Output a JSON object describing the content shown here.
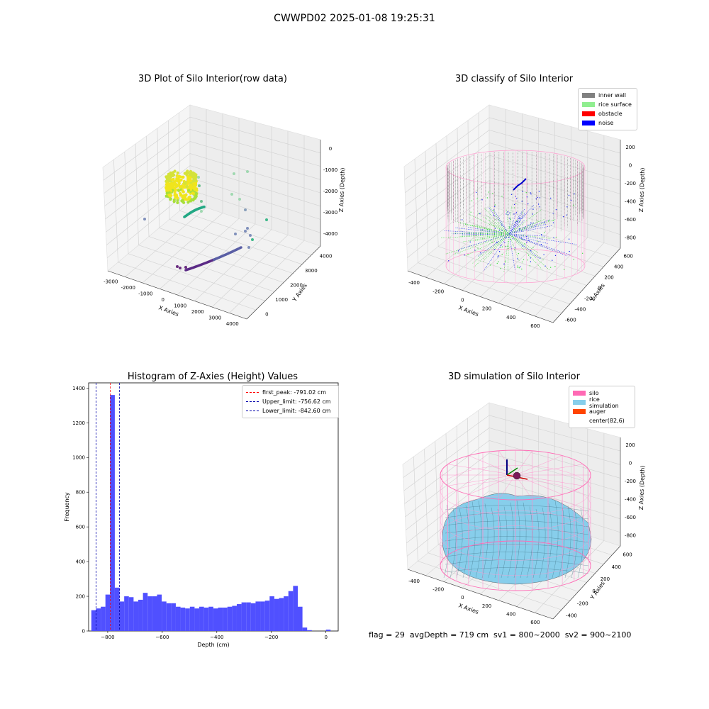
{
  "suptitle": "CWWPD02 2025-01-08 19:25:31",
  "panels": {
    "raw": {
      "title": "3D Plot of Silo Interior(row data)",
      "xlabel": "X Axies",
      "ylabel": "Y Axies",
      "zlabel": "Z Axies (Depth)",
      "xticks": [
        "-3000",
        "-2000",
        "-1000",
        "0",
        "1000",
        "2000",
        "3000",
        "4000"
      ],
      "yticks": [
        "0",
        "1000",
        "2000",
        "3000",
        "4000"
      ],
      "zticks": [
        "0",
        "-1000",
        "-2000",
        "-3000",
        "-4000"
      ]
    },
    "classify": {
      "title": "3D classify of Silo Interior",
      "xlabel": "X Axies",
      "ylabel": "Y Axies",
      "zlabel": "Z Axies (Depth)",
      "xticks": [
        "-400",
        "-200",
        "0",
        "200",
        "400",
        "600"
      ],
      "yticks": [
        "-600",
        "-400",
        "-200",
        "0",
        "200",
        "400",
        "600"
      ],
      "zticks": [
        "200",
        "0",
        "-200",
        "-400",
        "-600",
        "-800"
      ],
      "legend": [
        {
          "label": "inner wall",
          "color": "#808080"
        },
        {
          "label": "rice surface",
          "color": "#90ee90"
        },
        {
          "label": "obstacle",
          "color": "#ff0000"
        },
        {
          "label": "noise",
          "color": "#0000ff"
        }
      ]
    },
    "simulation": {
      "title": "3D simulation of Silo Interior",
      "xlabel": "X Axies",
      "ylabel": "Y Axies",
      "zlabel": "Z Axies (Depth)",
      "xticks": [
        "-400",
        "-200",
        "0",
        "200",
        "400",
        "600"
      ],
      "yticks": [
        "-400",
        "-200",
        "0",
        "200",
        "400",
        "600"
      ],
      "zticks": [
        "200",
        "0",
        "-200",
        "-400",
        "-600",
        "-800"
      ],
      "legend": [
        {
          "label": "silo",
          "color": "#ff69b4"
        },
        {
          "label": "rice simulation",
          "color": "#87ceeb"
        },
        {
          "label": "auger",
          "color": "#ff4500"
        },
        {
          "label": "center(82,6)",
          "color": "#ffffff"
        }
      ]
    }
  },
  "chart_data": {
    "type": "bar",
    "title": "Histogram of Z-Axies (Height) Values",
    "xlabel": "Depth (cm)",
    "ylabel": "Frequency",
    "bar_color": "#5050ff",
    "xlim": [
      -870,
      45
    ],
    "ylim": [
      0,
      1430
    ],
    "xticks": [
      -800,
      -600,
      -400,
      -200,
      0
    ],
    "yticks": [
      0,
      200,
      400,
      600,
      800,
      1000,
      1200,
      1400
    ],
    "bin_width": 17.2,
    "bin_start": -860,
    "values": [
      120,
      130,
      140,
      210,
      1360,
      250,
      170,
      200,
      195,
      170,
      180,
      220,
      200,
      200,
      210,
      170,
      160,
      160,
      140,
      135,
      130,
      140,
      130,
      140,
      135,
      140,
      130,
      135,
      135,
      140,
      145,
      155,
      165,
      165,
      160,
      170,
      170,
      175,
      200,
      185,
      190,
      200,
      230,
      260,
      140,
      20,
      5,
      0,
      0,
      0,
      8
    ],
    "lines": [
      {
        "label": "first_peak: -791.02 cm",
        "x": -791.02,
        "color": "#ff0000"
      },
      {
        "label": "Upper_limit: -756.62 cm",
        "x": -756.62,
        "color": "#0000aa"
      },
      {
        "label": "Lower_limit: -842.60 cm",
        "x": -842.6,
        "color": "#0000aa"
      }
    ]
  },
  "footer": "flag = 29  avgDepth = 719 cm  sv1 = 800~2000  sv2 = 900~2100"
}
